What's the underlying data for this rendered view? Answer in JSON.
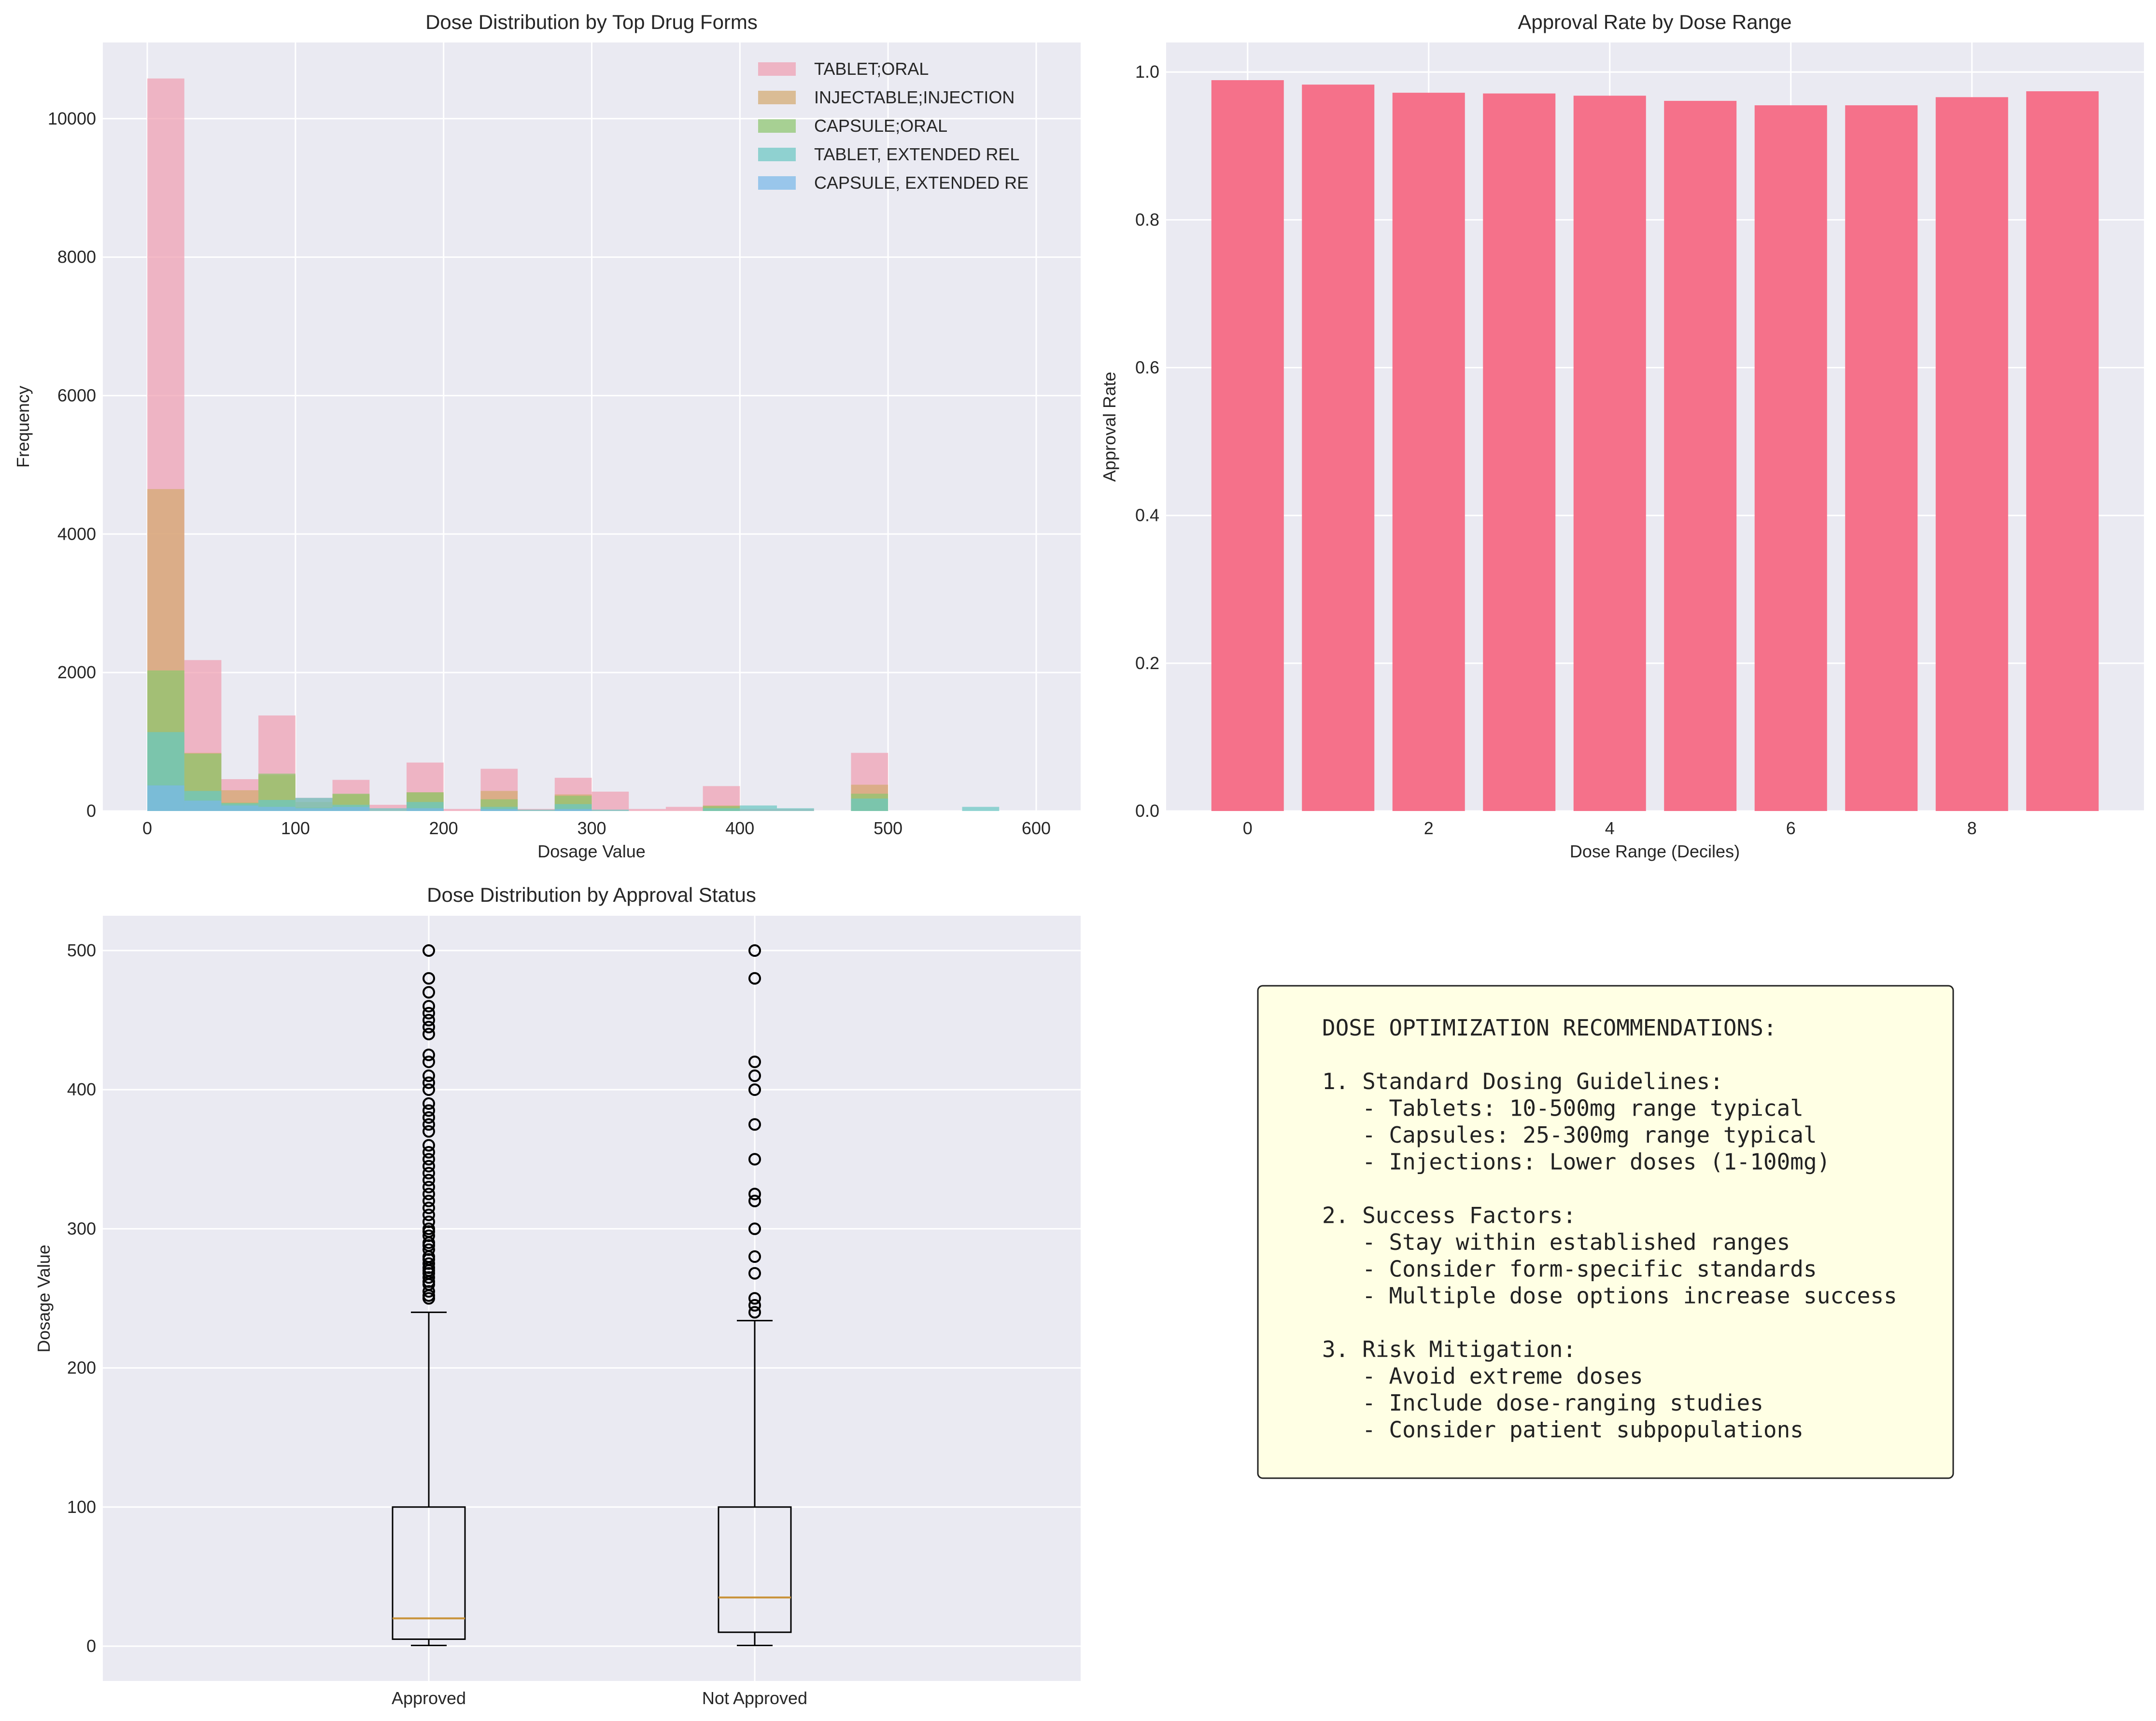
{
  "chart_data": [
    {
      "type": "histogram",
      "title": "Dose Distribution by Top Drug Forms",
      "xlabel": "Dosage Value",
      "ylabel": "Frequency",
      "xlim": [
        -30,
        630
      ],
      "ylim": [
        0,
        11100
      ],
      "xticks": [
        0,
        100,
        200,
        300,
        400,
        500,
        600
      ],
      "yticks": [
        0,
        2000,
        4000,
        6000,
        8000,
        10000
      ],
      "grid": true,
      "legend_position": "top-right",
      "bin_width": 25,
      "series": [
        {
          "name": "TABLET;ORAL",
          "color": "#f0a0b2",
          "bins": [
            [
              0,
              10580
            ],
            [
              25,
              2180
            ],
            [
              50,
              460
            ],
            [
              75,
              1380
            ],
            [
              100,
              190
            ],
            [
              125,
              450
            ],
            [
              150,
              90
            ],
            [
              175,
              700
            ],
            [
              200,
              30
            ],
            [
              225,
              610
            ],
            [
              250,
              30
            ],
            [
              275,
              480
            ],
            [
              300,
              280
            ],
            [
              325,
              30
            ],
            [
              350,
              60
            ],
            [
              375,
              360
            ],
            [
              400,
              30
            ],
            [
              425,
              30
            ],
            [
              475,
              840
            ]
          ]
        },
        {
          "name": "INJECTABLE;INJECTION",
          "color": "#d4aa70",
          "bins": [
            [
              0,
              4650
            ],
            [
              25,
              840
            ],
            [
              50,
              300
            ],
            [
              75,
              520
            ],
            [
              100,
              130
            ],
            [
              125,
              240
            ],
            [
              175,
              270
            ],
            [
              225,
              290
            ],
            [
              275,
              240
            ],
            [
              375,
              80
            ],
            [
              475,
              380
            ]
          ]
        },
        {
          "name": "CAPSULE;ORAL",
          "color": "#8ec66d",
          "bins": [
            [
              0,
              2030
            ],
            [
              25,
              830
            ],
            [
              50,
              120
            ],
            [
              75,
              540
            ],
            [
              100,
              50
            ],
            [
              125,
              250
            ],
            [
              175,
              270
            ],
            [
              225,
              170
            ],
            [
              275,
              220
            ],
            [
              375,
              70
            ],
            [
              475,
              250
            ]
          ]
        },
        {
          "name": "TABLET, EXTENDED REL",
          "color": "#6cc7c2",
          "bins": [
            [
              0,
              1140
            ],
            [
              25,
              290
            ],
            [
              50,
              110
            ],
            [
              75,
              160
            ],
            [
              100,
              190
            ],
            [
              125,
              90
            ],
            [
              150,
              40
            ],
            [
              175,
              130
            ],
            [
              225,
              60
            ],
            [
              250,
              20
            ],
            [
              275,
              100
            ],
            [
              300,
              20
            ],
            [
              375,
              40
            ],
            [
              400,
              80
            ],
            [
              425,
              40
            ],
            [
              475,
              180
            ],
            [
              550,
              60
            ]
          ]
        },
        {
          "name": "CAPSULE, EXTENDED RE",
          "color": "#7ab8e8",
          "bins": [
            [
              0,
              370
            ],
            [
              25,
              150
            ],
            [
              50,
              80
            ],
            [
              75,
              60
            ],
            [
              100,
              40
            ],
            [
              125,
              60
            ],
            [
              175,
              40
            ],
            [
              225,
              30
            ],
            [
              275,
              30
            ]
          ]
        }
      ]
    },
    {
      "type": "bar",
      "title": "Approval Rate by Dose Range",
      "xlabel": "Dose Range (Deciles)",
      "ylabel": "Approval Rate",
      "categories": [
        0,
        1,
        2,
        3,
        4,
        5,
        6,
        7,
        8,
        9
      ],
      "values": [
        0.989,
        0.983,
        0.972,
        0.971,
        0.968,
        0.961,
        0.955,
        0.955,
        0.966,
        0.974
      ],
      "xticks": [
        0,
        2,
        4,
        6,
        8
      ],
      "yticks": [
        "0.0",
        "0.2",
        "0.4",
        "0.6",
        "0.8",
        "1.0"
      ],
      "xlim": [
        -0.9,
        9.9
      ],
      "ylim": [
        0,
        1.04
      ],
      "color": "#f5718a",
      "grid": true
    },
    {
      "type": "box",
      "title": "Dose Distribution by Approval Status",
      "ylabel": "Dosage Value",
      "categories": [
        "Approved",
        "Not Approved"
      ],
      "ylim": [
        -25,
        525
      ],
      "yticks": [
        0,
        100,
        200,
        300,
        400,
        500
      ],
      "grid": true,
      "boxes": [
        {
          "label": "Approved",
          "whisker_low": 0.5,
          "q1": 5,
          "median": 20,
          "q3": 100,
          "whisker_high": 240,
          "outliers": [
            250,
            252,
            255,
            260,
            262,
            265,
            268,
            270,
            272,
            275,
            278,
            280,
            285,
            288,
            290,
            295,
            298,
            300,
            305,
            310,
            315,
            320,
            325,
            330,
            335,
            340,
            345,
            350,
            355,
            360,
            370,
            375,
            380,
            385,
            390,
            400,
            405,
            410,
            420,
            425,
            440,
            445,
            450,
            455,
            460,
            470,
            480,
            500
          ]
        },
        {
          "label": "Not Approved",
          "whisker_low": 0.5,
          "q1": 10,
          "median": 35,
          "q3": 100,
          "whisker_high": 234,
          "outliers": [
            240,
            245,
            250,
            268,
            280,
            300,
            320,
            325,
            350,
            375,
            400,
            410,
            420,
            480,
            500
          ]
        }
      ],
      "median_color": "#c9933a"
    }
  ],
  "recommendations": {
    "lines": [
      "DOSE OPTIMIZATION RECOMMENDATIONS:",
      "",
      "1. Standard Dosing Guidelines:",
      "   - Tablets: 10-500mg range typical",
      "   - Capsules: 25-300mg range typical",
      "   - Injections: Lower doses (1-100mg)",
      "",
      "2. Success Factors:",
      "   - Stay within established ranges",
      "   - Consider form-specific standards",
      "   - Multiple dose options increase success",
      "",
      "3. Risk Mitigation:",
      "   - Avoid extreme doses",
      "   - Include dose-ranging studies",
      "   - Consider patient subpopulations"
    ],
    "background": "#ffffe4"
  },
  "colors": {
    "axes_background": "#eaeaf2",
    "grid": "#ffffff",
    "text": "#262626"
  }
}
